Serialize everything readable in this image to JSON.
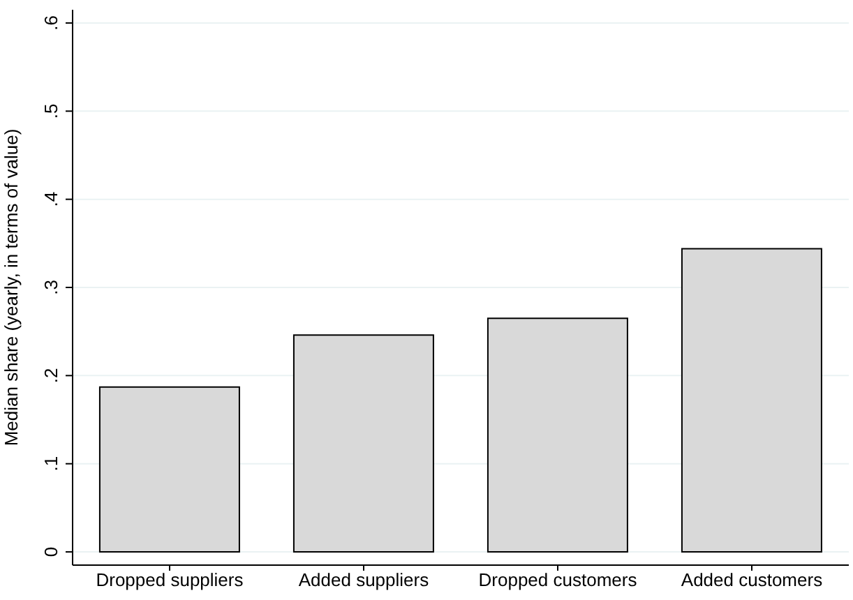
{
  "chart_data": {
    "type": "bar",
    "categories": [
      "Dropped suppliers",
      "Added suppliers",
      "Dropped customers",
      "Added customers"
    ],
    "values": [
      0.187,
      0.246,
      0.265,
      0.344
    ],
    "color": "#d9d9d9",
    "ylabel": "Median share (yearly, in terms of value)",
    "ylim": [
      -0.015,
      0.615
    ],
    "yticks": [
      {
        "value": 0,
        "label": "0"
      },
      {
        "value": 0.1,
        "label": ".1"
      },
      {
        "value": 0.2,
        "label": ".2"
      },
      {
        "value": 0.3,
        "label": ".3"
      },
      {
        "value": 0.4,
        "label": ".4"
      },
      {
        "value": 0.5,
        "label": ".5"
      },
      {
        "value": 0.6,
        "label": ".6"
      }
    ],
    "grid": "y"
  }
}
